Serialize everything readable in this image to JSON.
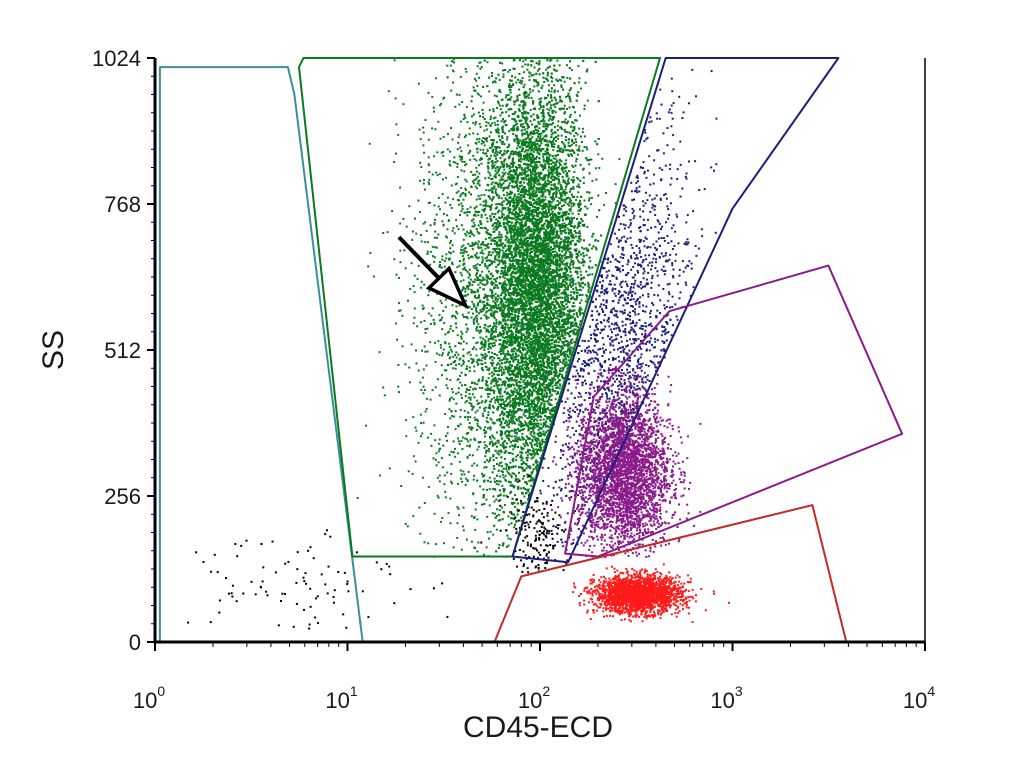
{
  "chart_data": {
    "type": "scatter",
    "title": "",
    "xlabel": "CD45-ECD",
    "ylabel": "SS",
    "x_scale": "log",
    "xlim": [
      1,
      10000
    ],
    "ylim": [
      0,
      1024
    ],
    "x_ticks": [
      {
        "value": 1,
        "base": "10",
        "exp": "0"
      },
      {
        "value": 10,
        "base": "10",
        "exp": "1"
      },
      {
        "value": 100,
        "base": "10",
        "exp": "2"
      },
      {
        "value": 1000,
        "base": "10",
        "exp": "3"
      },
      {
        "value": 10000,
        "base": "10",
        "exp": "4"
      }
    ],
    "y_ticks": [
      {
        "value": 0,
        "label": "0"
      },
      {
        "value": 256,
        "label": "256"
      },
      {
        "value": 512,
        "label": "512"
      },
      {
        "value": 768,
        "label": "768"
      },
      {
        "value": 1024,
        "label": "1024"
      }
    ],
    "grid": false,
    "legend": "none",
    "populations": [
      {
        "color": "#0a7a1e",
        "count": 9000,
        "center": [
          95,
          620
        ],
        "spread": [
          0.13,
          190
        ],
        "ylim": [
          150,
          1024
        ],
        "lower_bound": 150,
        "clip": "green_gate"
      },
      {
        "color": "#0a7a1e",
        "count": 2600,
        "center": [
          60,
          600
        ],
        "spread": [
          0.22,
          230
        ],
        "ylim": [
          150,
          1024
        ],
        "lower_bound": 150,
        "clip": "green_gate"
      },
      {
        "color": "#1a1f7a",
        "count": 1300,
        "center": [
          260,
          520
        ],
        "spread": [
          0.2,
          230
        ],
        "ylim": [
          140,
          1024
        ],
        "lower_bound": 140,
        "clip": "blue_gate"
      },
      {
        "color": "#8a1a8a",
        "count": 3200,
        "center": [
          270,
          300
        ],
        "spread": [
          0.12,
          70
        ],
        "ylim": [
          150,
          600
        ],
        "lower_bound": 150,
        "clip": "none"
      },
      {
        "color": "#ff1a1a",
        "count": 2200,
        "center": [
          320,
          85
        ],
        "spread": [
          0.11,
          16
        ],
        "ylim": [
          35,
          150
        ],
        "lower_bound": 35,
        "clip": "none"
      },
      {
        "color": "#000000",
        "count": 170,
        "center": [
          95,
          190
        ],
        "spread": [
          0.08,
          40
        ],
        "ylim": [
          120,
          330
        ],
        "lower_bound": 120,
        "clip": "none"
      },
      {
        "color": "#000000",
        "count": 90,
        "center": [
          5,
          110
        ],
        "spread": [
          0.3,
          55
        ],
        "ylim": [
          20,
          330
        ],
        "lower_bound": 20,
        "clip": "none"
      }
    ],
    "gates": [
      {
        "name": "cyan_gate",
        "color": "#3a8f9a",
        "points": [
          [
            1.06,
            1008
          ],
          [
            4.9,
            1008
          ],
          [
            5.3,
            960
          ],
          [
            12,
            0
          ],
          [
            1.06,
            0
          ]
        ]
      },
      {
        "name": "green_gate",
        "color": "#0a7a1e",
        "points": [
          [
            5.6,
            1008
          ],
          [
            5.9,
            1024
          ],
          [
            420,
            1024
          ],
          [
            72,
            150
          ],
          [
            10.6,
            150
          ]
        ]
      },
      {
        "name": "blue_gate",
        "color": "#1a1f7a",
        "points": [
          [
            450,
            1024
          ],
          [
            3550,
            1024
          ],
          [
            1000,
            760
          ],
          [
            140,
            140
          ],
          [
            72,
            150
          ]
        ]
      },
      {
        "name": "purple_gate",
        "color": "#8a1a8a",
        "points": [
          [
            190,
            430
          ],
          [
            470,
            580
          ],
          [
            3150,
            660
          ],
          [
            7600,
            365
          ],
          [
            200,
            150
          ],
          [
            135,
            155
          ]
        ]
      },
      {
        "name": "red_gate",
        "color": "#c42a2a",
        "points": [
          [
            58,
            0
          ],
          [
            80,
            115
          ],
          [
            2600,
            240
          ],
          [
            3900,
            0
          ]
        ]
      }
    ],
    "annotations": [
      {
        "type": "arrow",
        "from": [
          18.5,
          710
        ],
        "to": [
          41,
          590
        ],
        "color": "#000000"
      }
    ]
  }
}
